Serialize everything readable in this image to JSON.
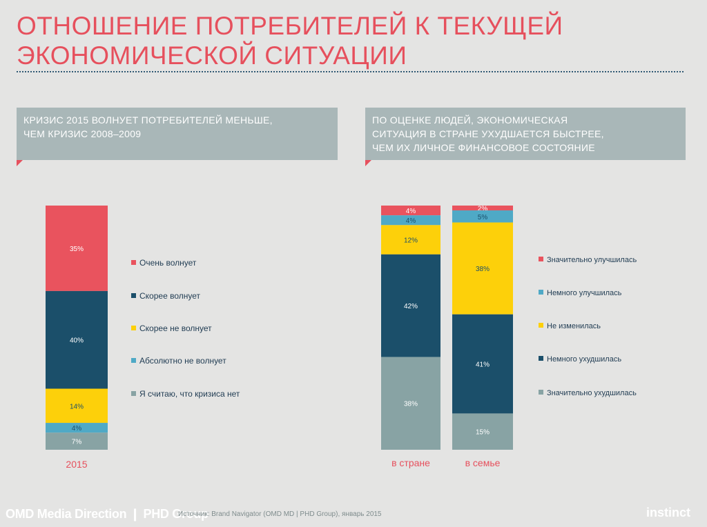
{
  "page": {
    "title_line1": "ОТНОШЕНИЕ ПОТРЕБИТЕЛЕЙ К ТЕКУЩЕЙ",
    "title_line2": "ЭКОНОМИЧЕСКОЙ СИТУАЦИИ",
    "left_callout": [
      "КРИЗИС 2015 ВОЛНУЕТ ПОТРЕБИТЕЛЕЙ МЕНЬШЕ,",
      "ЧЕМ КРИЗИС 2008–2009"
    ],
    "right_callout": [
      "ПО ОЦЕНКЕ ЛЮДЕЙ, ЭКОНОМИЧЕСКАЯ",
      "СИТУАЦИЯ В СТРАНЕ УХУДШАЕТСЯ БЫСТРЕЕ,",
      "ЧЕМ ИХ ЛИЧНОЕ ФИНАНСОВОЕ СОСТОЯНИЕ"
    ],
    "footer_brand": "OMD Media Direction ❙ PHD Group",
    "footer_source": "Источник: Brand Navigator (OMD MD | PHD Group), январь 2015",
    "footer_logo": "instinct"
  },
  "colors": {
    "red": "#e9535e",
    "dark_blue": "#1b4f6a",
    "yellow": "#fdd00a",
    "light_blue": "#4fa9c6",
    "gray": "#88a3a4",
    "title_red": "#e6505d",
    "legend_text": "#1f3b52"
  },
  "chart_data": [
    {
      "type": "bar",
      "stacked": true,
      "categories": [
        "2015"
      ],
      "series": [
        {
          "name": "Очень волнует",
          "values": [
            35
          ],
          "color": "#e9535e"
        },
        {
          "name": "Скорее волнует",
          "values": [
            40
          ],
          "color": "#1b4f6a"
        },
        {
          "name": "Скорее не волнует",
          "values": [
            14
          ],
          "color": "#fdd00a"
        },
        {
          "name": "Абсолютно не волнует",
          "values": [
            4
          ],
          "color": "#4fa9c6"
        },
        {
          "name": "Я считаю, что кризиса нет",
          "values": [
            7
          ],
          "color": "#88a3a4"
        }
      ],
      "value_suffix": "%",
      "legend": "right"
    },
    {
      "type": "bar",
      "stacked": true,
      "categories": [
        "в стране",
        "в семье"
      ],
      "series": [
        {
          "name": "Значительно улучшилась",
          "values": [
            4,
            2
          ],
          "color": "#e9535e"
        },
        {
          "name": "Немного улучшилась",
          "values": [
            4,
            5
          ],
          "color": "#4fa9c6"
        },
        {
          "name": "Не изменилась",
          "values": [
            12,
            38
          ],
          "color": "#fdd00a"
        },
        {
          "name": "Немного ухудшилась",
          "values": [
            42,
            41
          ],
          "color": "#1b4f6a"
        },
        {
          "name": "Значительно ухудшилась",
          "values": [
            38,
            15
          ],
          "color": "#88a3a4"
        }
      ],
      "value_suffix": "%",
      "legend": "right"
    }
  ]
}
